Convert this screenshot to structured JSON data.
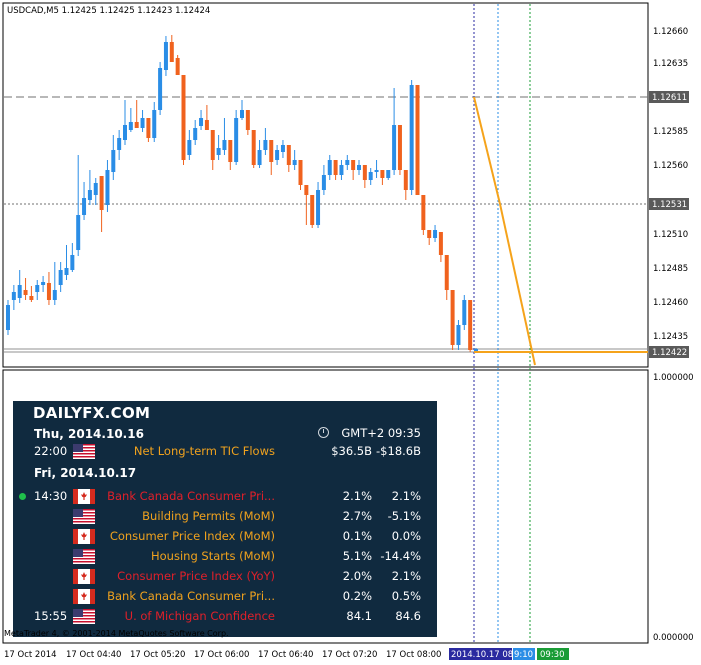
{
  "chart": {
    "symbol_header": "USDCAD,M5  1.12425 1.12425 1.12423 1.12424",
    "price_labels": [
      "1.12660",
      "1.12635",
      "1.12585",
      "1.12560",
      "1.12510",
      "1.12485",
      "1.12460",
      "1.12435"
    ],
    "tag_high": "1.12611",
    "tag_mid": "1.12531",
    "tag_current": "1.12422",
    "indicator_top": "1.000000",
    "indicator_bottom": "0.000000",
    "time_labels": [
      "17 Oct 2014",
      "17 Oct 04:40",
      "17 Oct 05:20",
      "17 Oct 06:00",
      "17 Oct 06:40",
      "17 Oct 07:20",
      "17 Oct 08:00"
    ],
    "time_tag_1": "2014.10.17 08:55",
    "time_tag_2": "9:10",
    "time_tag_3": "09:30",
    "watermark": "MetaTrader 4, © 2001-2014 MetaQuotes Software Corp.",
    "colors": {
      "bull": "#2a8de6",
      "bear": "#f0621e",
      "trend": "#f5a31b",
      "tag_bg": "#2a2aa0",
      "tag_green": "#1a9c36"
    }
  },
  "calendar": {
    "logo_daily": "DAILY",
    "logo_fx": "FX",
    "logo_com": ".COM",
    "day1": "Thu, 2014.10.16",
    "timezone": "GMT+2 09:35",
    "day2": "Fri, 2014.10.17",
    "events": [
      {
        "time": "22:00",
        "flag": "us",
        "name": "Net Long-term TIC Flows",
        "forecast": "$36.5B",
        "previous": "-$18.6B",
        "color": "#f0a21e"
      },
      {
        "time": "14:30",
        "flag": "ca",
        "name": "Bank Canada Consumer Pri...",
        "forecast": "2.1%",
        "previous": "2.1%",
        "color": "#e0202a"
      },
      {
        "time": "",
        "flag": "us",
        "name": "Building Permits (MoM)",
        "forecast": "2.7%",
        "previous": "-5.1%",
        "color": "#f0a21e"
      },
      {
        "time": "",
        "flag": "ca",
        "name": "Consumer Price Index (MoM)",
        "forecast": "0.1%",
        "previous": "0.0%",
        "color": "#f0a21e"
      },
      {
        "time": "",
        "flag": "us",
        "name": "Housing Starts (MoM)",
        "forecast": "5.1%",
        "previous": "-14.4%",
        "color": "#f0a21e"
      },
      {
        "time": "",
        "flag": "ca",
        "name": "Consumer Price Index (YoY)",
        "forecast": "2.0%",
        "previous": "2.1%",
        "color": "#e0202a"
      },
      {
        "time": "",
        "flag": "ca",
        "name": "Bank Canada Consumer Pri...",
        "forecast": "0.2%",
        "previous": "0.5%",
        "color": "#f0a21e"
      },
      {
        "time": "15:55",
        "flag": "us",
        "name": "U. of Michigan Confidence",
        "forecast": "84.1",
        "previous": "84.6",
        "color": "#e0202a"
      }
    ]
  }
}
